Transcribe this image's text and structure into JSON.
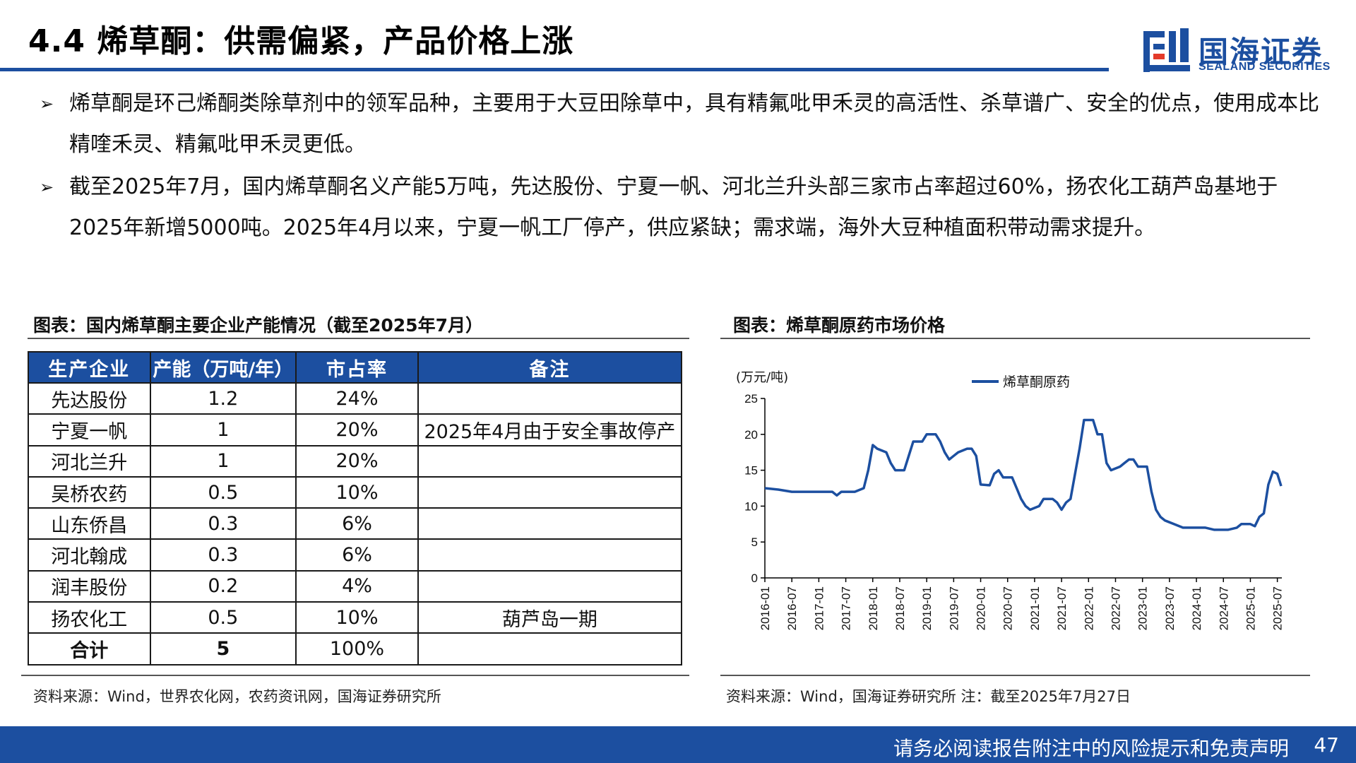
{
  "header": {
    "title": "4.4 烯草酮：供需偏紧，产品价格上涨",
    "logo_cn": "国海证券",
    "logo_en": "SEALAND SECURITIES"
  },
  "bullets": [
    "烯草酮是环己烯酮类除草剂中的领军品种，主要用于大豆田除草中，具有精氟吡甲禾灵的高活性、杀草谱广、安全的优点，使用成本比精喹禾灵、精氟吡甲禾灵更低。",
    "截至2025年7月，国内烯草酮名义产能5万吨，先达股份、宁夏一帆、河北兰升头部三家市占率超过60%，扬农化工葫芦岛基地于2025年新增5000吨。2025年4月以来，宁夏一帆工厂停产，供应紧缺；需求端，海外大豆种植面积带动需求提升。"
  ],
  "table_figure": {
    "title": "图表：国内烯草酮主要企业产能情况（截至2025年7月）",
    "headers": [
      "生产企业",
      "产能（万吨/年）",
      "市占率",
      "备注"
    ],
    "rows": [
      [
        "先达股份",
        "1.2",
        "24%",
        ""
      ],
      [
        "宁夏一帆",
        "1",
        "20%",
        "2025年4月由于安全事故停产"
      ],
      [
        "河北兰升",
        "1",
        "20%",
        ""
      ],
      [
        "吴桥农药",
        "0.5",
        "10%",
        ""
      ],
      [
        "山东侨昌",
        "0.3",
        "6%",
        ""
      ],
      [
        "河北翰成",
        "0.3",
        "6%",
        ""
      ],
      [
        "润丰股份",
        "0.2",
        "4%",
        ""
      ],
      [
        "扬农化工",
        "0.5",
        "10%",
        "葫芦岛一期"
      ],
      [
        "合计",
        "5",
        "100%",
        ""
      ]
    ],
    "source": "资料来源：Wind，世界农化网，农药资讯网，国海证券研究所"
  },
  "chart_figure": {
    "title": "图表：烯草酮原药市场价格",
    "source": "资料来源：Wind，国海证券研究所 注：截至2025年7月27日"
  },
  "chart_data": {
    "type": "line",
    "unit_label": "(万元/吨)",
    "legend_position": "top-center",
    "ylim": [
      0,
      25
    ],
    "yticks": [
      0,
      5,
      10,
      15,
      20,
      25
    ],
    "xlim": [
      "2016-01",
      "2025-08"
    ],
    "xticks": [
      "2016-01",
      "2016-07",
      "2017-01",
      "2017-07",
      "2018-01",
      "2018-07",
      "2019-01",
      "2019-07",
      "2020-01",
      "2020-07",
      "2021-01",
      "2021-07",
      "2022-01",
      "2022-07",
      "2023-01",
      "2023-07",
      "2024-01",
      "2024-07",
      "2025-01",
      "2025-07"
    ],
    "series": [
      {
        "name": "烯草酮原药",
        "color": "#1c4fa0",
        "points": [
          [
            "2016-01",
            12.5
          ],
          [
            "2016-04",
            12.3
          ],
          [
            "2016-07",
            12.0
          ],
          [
            "2016-10",
            12.0
          ],
          [
            "2017-01",
            12.0
          ],
          [
            "2017-04",
            12.0
          ],
          [
            "2017-05",
            11.5
          ],
          [
            "2017-06",
            12.0
          ],
          [
            "2017-08",
            12.0
          ],
          [
            "2017-09",
            12.0
          ],
          [
            "2017-11",
            12.5
          ],
          [
            "2017-12",
            15.0
          ],
          [
            "2018-01",
            18.5
          ],
          [
            "2018-02",
            18.0
          ],
          [
            "2018-04",
            17.5
          ],
          [
            "2018-05",
            16.0
          ],
          [
            "2018-06",
            15.0
          ],
          [
            "2018-08",
            15.0
          ],
          [
            "2018-09",
            17.0
          ],
          [
            "2018-10",
            19.0
          ],
          [
            "2018-12",
            19.0
          ],
          [
            "2019-01",
            20.0
          ],
          [
            "2019-03",
            20.0
          ],
          [
            "2019-04",
            19.0
          ],
          [
            "2019-05",
            17.5
          ],
          [
            "2019-06",
            16.5
          ],
          [
            "2019-07",
            17.0
          ],
          [
            "2019-08",
            17.5
          ],
          [
            "2019-10",
            18.0
          ],
          [
            "2019-11",
            18.0
          ],
          [
            "2019-12",
            17.0
          ],
          [
            "2020-01",
            13.0
          ],
          [
            "2020-03",
            12.9
          ],
          [
            "2020-04",
            14.5
          ],
          [
            "2020-05",
            15.0
          ],
          [
            "2020-06",
            14.0
          ],
          [
            "2020-08",
            14.0
          ],
          [
            "2020-09",
            12.5
          ],
          [
            "2020-10",
            11.0
          ],
          [
            "2020-11",
            10.0
          ],
          [
            "2020-12",
            9.5
          ],
          [
            "2021-02",
            10.0
          ],
          [
            "2021-03",
            11.0
          ],
          [
            "2021-05",
            11.0
          ],
          [
            "2021-06",
            10.5
          ],
          [
            "2021-07",
            9.5
          ],
          [
            "2021-08",
            10.5
          ],
          [
            "2021-09",
            11.0
          ],
          [
            "2021-11",
            18.0
          ],
          [
            "2021-12",
            22.0
          ],
          [
            "2022-02",
            22.0
          ],
          [
            "2022-03",
            20.0
          ],
          [
            "2022-04",
            20.0
          ],
          [
            "2022-05",
            16.0
          ],
          [
            "2022-06",
            15.0
          ],
          [
            "2022-08",
            15.5
          ],
          [
            "2022-09",
            16.0
          ],
          [
            "2022-10",
            16.5
          ],
          [
            "2022-11",
            16.5
          ],
          [
            "2022-12",
            15.5
          ],
          [
            "2023-02",
            15.5
          ],
          [
            "2023-03",
            12.0
          ],
          [
            "2023-04",
            9.5
          ],
          [
            "2023-05",
            8.5
          ],
          [
            "2023-06",
            8.0
          ],
          [
            "2023-08",
            7.5
          ],
          [
            "2023-10",
            7.0
          ],
          [
            "2023-12",
            7.0
          ],
          [
            "2024-03",
            7.0
          ],
          [
            "2024-05",
            6.7
          ],
          [
            "2024-08",
            6.7
          ],
          [
            "2024-10",
            7.0
          ],
          [
            "2024-11",
            7.5
          ],
          [
            "2025-01",
            7.5
          ],
          [
            "2025-02",
            7.2
          ],
          [
            "2025-03",
            8.5
          ],
          [
            "2025-04",
            9.0
          ],
          [
            "2025-05",
            13.0
          ],
          [
            "2025-06",
            14.8
          ],
          [
            "2025-07",
            14.5
          ],
          [
            "2025-07-27",
            12.8
          ]
        ]
      }
    ]
  },
  "footer": {
    "disclaimer": "请务必阅读报告附注中的风险提示和免责声明",
    "page": "47"
  },
  "colors": {
    "brand": "#1c4fa0",
    "logo_red": "#e33a2a"
  }
}
